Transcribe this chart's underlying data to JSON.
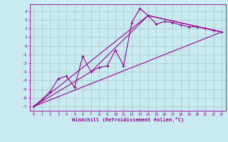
{
  "xlabel": "Windchill (Refroidissement éolien,°C)",
  "background_color": "#c8eaf0",
  "grid_color": "#aacccc",
  "line_color": "#990099",
  "xlim": [
    -0.5,
    23.5
  ],
  "ylim": [
    -7.5,
    4.8
  ],
  "xticks": [
    0,
    1,
    2,
    3,
    4,
    5,
    6,
    7,
    8,
    9,
    10,
    11,
    12,
    13,
    14,
    15,
    16,
    17,
    18,
    19,
    20,
    21,
    22,
    23
  ],
  "yticks": [
    -7,
    -6,
    -5,
    -4,
    -3,
    -2,
    -1,
    0,
    1,
    2,
    3,
    4
  ],
  "series1_x": [
    0,
    1,
    2,
    3,
    4,
    5,
    6,
    7,
    8,
    9,
    10,
    11,
    12,
    13,
    14,
    15,
    16,
    17,
    18,
    19,
    20,
    21,
    22,
    23
  ],
  "series1_y": [
    -7.0,
    -6.2,
    -5.3,
    -3.8,
    -3.5,
    -4.8,
    -1.2,
    -3.0,
    -2.5,
    -2.3,
    -0.5,
    -2.3,
    2.7,
    4.3,
    3.5,
    2.5,
    2.8,
    2.7,
    2.4,
    2.2,
    2.2,
    2.0,
    1.8,
    1.6
  ],
  "series2_x": [
    0,
    7,
    14,
    23
  ],
  "series2_y": [
    -7.0,
    -3.0,
    3.5,
    1.6
  ],
  "series3_x": [
    0,
    23
  ],
  "series3_y": [
    -7.0,
    1.6
  ],
  "series4_x": [
    0,
    14,
    23
  ],
  "series4_y": [
    -7.0,
    3.5,
    1.6
  ]
}
